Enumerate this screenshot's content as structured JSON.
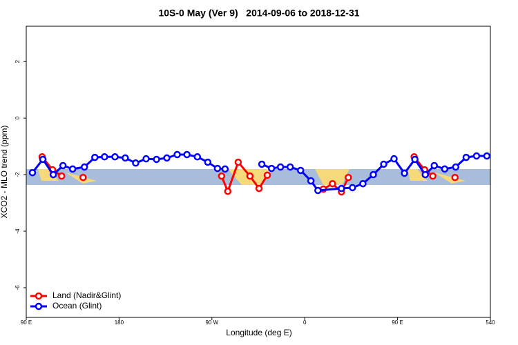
{
  "chart_data": {
    "type": "line",
    "title": "10S-0 May (Ver 9)   2014-09-06 to 2018-12-31",
    "xlabel": "Longitude (deg E)",
    "ylabel": "XCO2 - MLO trend (ppm)",
    "xlim": [
      90,
      540
    ],
    "ylim": [
      -7.05,
      3.25
    ],
    "xticks": [
      {
        "value": 90,
        "label": "90 E"
      },
      180,
      {
        "value": 270,
        "label": "90 W"
      },
      {
        "value": 360,
        "label": "0"
      },
      {
        "value": 450,
        "label": "90 E"
      },
      540
    ],
    "yticks": [
      2,
      0,
      -2,
      -4,
      -6
    ],
    "legend": "bottom-left",
    "series": [
      {
        "name": "Land (Nadir&Glint)",
        "color": "#ff0000",
        "x": [
          105.4,
          115.5,
          124.3,
          null,
          145.1,
          null,
          279.4,
          285.4,
          295.5,
          306.9,
          315.7,
          323.7,
          null,
          378.1,
          386.9,
          395.6,
          402.3,
          null,
          466.1,
          476.2,
          484.2,
          null,
          505.7
        ],
        "values": [
          -1.37,
          -1.83,
          -2.05,
          null,
          -2.1,
          null,
          -2.05,
          -2.59,
          -1.56,
          -2.05,
          -2.49,
          -2.02,
          null,
          -2.51,
          -2.32,
          -2.61,
          -2.1,
          null,
          -1.37,
          -1.83,
          -2.05,
          null,
          -2.1
        ]
      },
      {
        "name": "Ocean (Glint)",
        "color": "#0000ff",
        "x": [
          96.0,
          106.1,
          116.2,
          125.6,
          135.0,
          146.4,
          156.5,
          165.9,
          176.0,
          186.0,
          196.1,
          206.2,
          216.3,
          226.3,
          236.4,
          245.8,
          255.9,
          266.0,
          275.4,
          282.8,
          null,
          318.4,
          327.8,
          336.5,
          345.9,
          356.0,
          366.0,
          372.8,
          395.6,
          406.3,
          416.4,
          426.5,
          436.6,
          446.6,
          456.7,
          466.8,
          476.9,
          485.6,
          495.7,
          506.4,
          516.5,
          526.6,
          536.6
        ],
        "values": [
          -1.93,
          -1.46,
          -2.0,
          -1.68,
          -1.8,
          -1.73,
          -1.39,
          -1.37,
          -1.37,
          -1.41,
          -1.59,
          -1.44,
          -1.46,
          -1.41,
          -1.29,
          -1.29,
          -1.37,
          -1.56,
          -1.78,
          -1.8,
          null,
          -1.63,
          -1.78,
          -1.73,
          -1.73,
          -1.85,
          -2.22,
          -2.56,
          -2.49,
          -2.46,
          -2.32,
          -2.0,
          -1.63,
          -1.44,
          -1.95,
          -1.46,
          -2.0,
          -1.68,
          -1.8,
          -1.73,
          -1.39,
          -1.34,
          -1.34
        ]
      }
    ]
  }
}
